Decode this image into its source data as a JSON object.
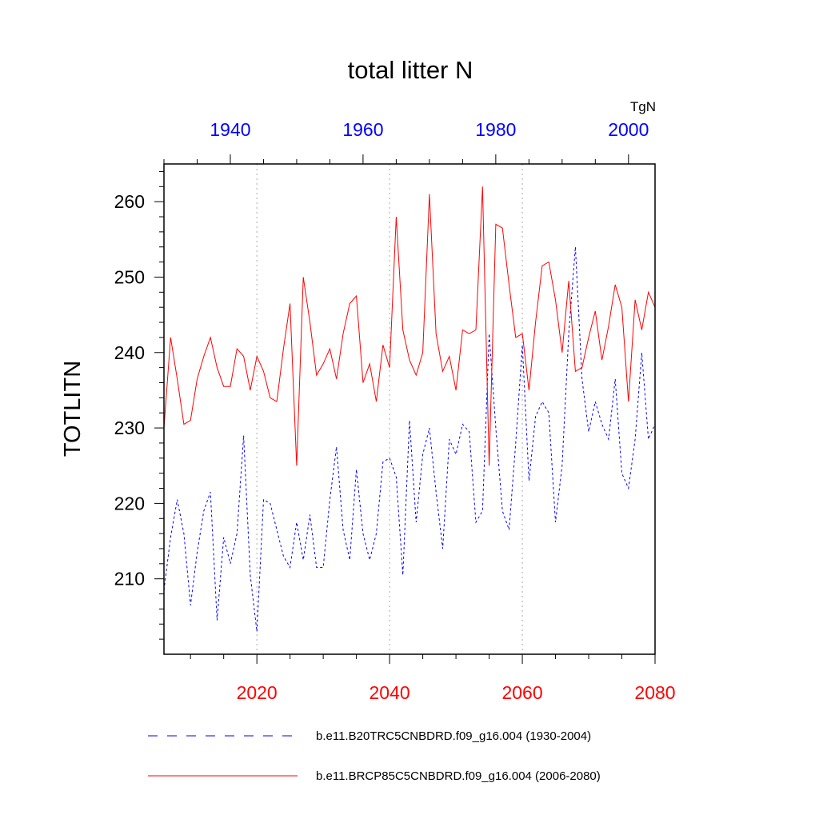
{
  "chart_data": {
    "type": "line",
    "title": "total litter N",
    "units": "TgN",
    "ylabel": "TOTLITN",
    "ylim": [
      200,
      265
    ],
    "yticks": [
      210,
      220,
      230,
      240,
      250,
      260
    ],
    "grid": "vertical dotted at bottom-axis major ticks",
    "top_axis": {
      "range": [
        1930,
        2004
      ],
      "ticks": [
        1940,
        1960,
        1980,
        2000
      ],
      "color": "#0000ff"
    },
    "bottom_axis": {
      "range": [
        2006,
        2080
      ],
      "ticks": [
        2020,
        2040,
        2060,
        2080
      ],
      "color": "#ff0000"
    },
    "series": [
      {
        "name": "b.e11.B20TRC5CNBDRD.f09_g16.004 (1930-2004)",
        "color": "#0000ff",
        "dash": "dashed",
        "axis": "top",
        "start_year": 1930,
        "values": [
          208.5,
          215.5,
          220.5,
          216,
          206.5,
          213.5,
          219,
          221.5,
          204.5,
          215.5,
          212,
          216,
          229,
          210.5,
          203,
          220.5,
          220,
          216.5,
          213,
          211.5,
          217.5,
          212.5,
          218.5,
          211.5,
          211.5,
          220.5,
          227.5,
          216.5,
          212.5,
          224.5,
          216,
          212.5,
          216,
          225.5,
          226,
          223.5,
          210.5,
          231,
          217.5,
          226.5,
          230,
          221.5,
          214,
          228.5,
          226.5,
          230.5,
          229.5,
          217.5,
          219,
          242.5,
          230,
          219,
          216.5,
          228,
          241,
          223,
          231.5,
          233.5,
          232,
          217.5,
          225,
          242.5,
          254,
          236.5,
          229.5,
          233.5,
          230.5,
          228.5,
          236.5,
          224,
          222,
          228.5,
          240,
          228.5,
          230.5
        ]
      },
      {
        "name": "b.e11.BRCP85C5CNBDRD.f09_g16.004 (2006-2080)",
        "color": "#ff0000",
        "dash": "solid",
        "axis": "bottom",
        "start_year": 2006,
        "values": [
          230,
          242,
          236.5,
          230.5,
          231,
          236.5,
          239.5,
          242,
          238,
          235.5,
          235.5,
          240.5,
          239.5,
          235,
          239.5,
          237.5,
          234,
          233.5,
          240.5,
          246.5,
          225,
          250,
          244,
          237,
          238.5,
          240.5,
          236.5,
          242.5,
          246.5,
          247.5,
          236,
          238.5,
          233.5,
          241,
          238,
          258,
          243,
          239,
          237,
          240,
          261,
          242.5,
          237.5,
          239.5,
          235,
          243,
          242.5,
          243,
          262,
          225,
          257,
          256.5,
          249,
          242,
          242.5,
          235,
          244,
          251.5,
          252,
          247,
          240,
          249.5,
          237.5,
          238,
          242,
          245.5,
          239,
          243.5,
          249,
          246,
          233.5,
          247,
          243,
          248,
          246
        ]
      }
    ]
  }
}
